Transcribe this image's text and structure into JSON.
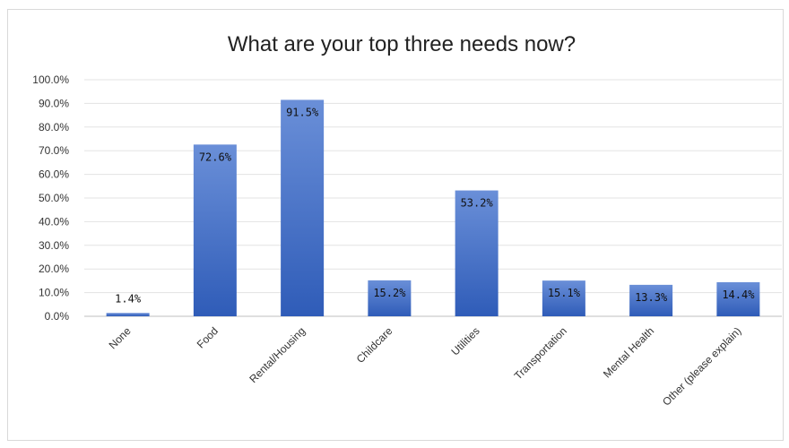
{
  "chart_data": {
    "type": "bar",
    "title": "What are your top three needs now?",
    "categories": [
      "None",
      "Food",
      "Rental/Housing",
      "Childcare",
      "Utilities",
      "Transportation",
      "Mental Health",
      "Other (please explain)"
    ],
    "values": [
      1.4,
      72.6,
      91.5,
      15.2,
      53.2,
      15.1,
      13.3,
      14.4
    ],
    "data_labels": [
      "1.4%",
      "72.6%",
      "91.5%",
      "15.2%",
      "53.2%",
      "15.1%",
      "13.3%",
      "14.4%"
    ],
    "yticks": [
      "0.0%",
      "10.0%",
      "20.0%",
      "30.0%",
      "40.0%",
      "50.0%",
      "60.0%",
      "70.0%",
      "80.0%",
      "90.0%",
      "100.0%"
    ],
    "ylim": [
      0,
      100
    ],
    "grid": true,
    "legend": "none",
    "bar_color_top": "#6a8fd8",
    "bar_color_bottom": "#2f5cb8"
  }
}
